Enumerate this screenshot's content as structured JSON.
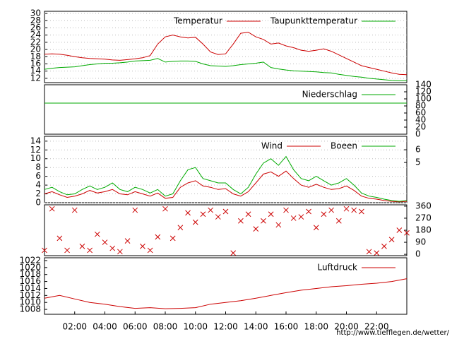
{
  "chart_data": [
    {
      "type": "line",
      "xlim": [
        0,
        24
      ],
      "ylim": [
        10.8,
        30.6
      ],
      "yticks": [
        12,
        14,
        16,
        18,
        20,
        22,
        24,
        26,
        28,
        30
      ],
      "yaxis_side": "left",
      "grid": true,
      "series": [
        {
          "name": "Temperatur",
          "color": "#cc0000",
          "x": [
            0,
            0.5,
            1,
            1.5,
            2,
            2.5,
            3,
            3.5,
            4,
            4.5,
            5,
            5.5,
            6,
            6.5,
            7,
            7.5,
            8,
            8.5,
            9,
            9.5,
            10,
            10.5,
            11,
            11.5,
            12,
            12.5,
            13,
            13.5,
            14,
            14.5,
            15,
            15.5,
            16,
            16.5,
            17,
            17.5,
            18,
            18.5,
            19,
            19.5,
            20,
            20.5,
            21,
            21.5,
            22,
            22.5,
            23,
            23.5,
            24
          ],
          "values": [
            18.7,
            18.8,
            18.7,
            18.4,
            18.0,
            17.7,
            17.5,
            17.4,
            17.3,
            17.1,
            17.0,
            17.2,
            17.4,
            17.7,
            18.3,
            21.5,
            23.5,
            24.0,
            23.5,
            23.2,
            23.4,
            21.5,
            19.3,
            18.6,
            18.8,
            21.5,
            24.5,
            24.8,
            23.5,
            22.8,
            21.5,
            21.8,
            21.0,
            20.5,
            19.8,
            19.5,
            19.8,
            20.2,
            19.5,
            18.5,
            17.5,
            16.5,
            15.5,
            15.0,
            14.5,
            14.0,
            13.5,
            13.1,
            13.0
          ]
        },
        {
          "name": "Taupunkttemperatur",
          "color": "#00aa00",
          "x": [
            0,
            0.5,
            1,
            1.5,
            2,
            2.5,
            3,
            3.5,
            4,
            4.5,
            5,
            5.5,
            6,
            6.5,
            7,
            7.5,
            8,
            8.5,
            9,
            9.5,
            10,
            10.5,
            11,
            11.5,
            12,
            12.5,
            13,
            13.5,
            14,
            14.5,
            15,
            15.5,
            16,
            16.5,
            17,
            17.5,
            18,
            18.5,
            19,
            19.5,
            20,
            20.5,
            21,
            21.5,
            22,
            22.5,
            23,
            23.5,
            24
          ],
          "values": [
            14.5,
            14.8,
            15.0,
            15.1,
            15.2,
            15.5,
            15.8,
            16.0,
            16.2,
            16.2,
            16.3,
            16.5,
            16.8,
            16.9,
            17.0,
            17.5,
            16.5,
            16.7,
            16.8,
            16.8,
            16.7,
            16.0,
            15.5,
            15.4,
            15.3,
            15.5,
            15.8,
            16.0,
            16.2,
            16.5,
            15.0,
            14.6,
            14.3,
            14.1,
            14.0,
            13.9,
            13.8,
            13.6,
            13.5,
            13.1,
            12.8,
            12.5,
            12.3,
            12.0,
            11.8,
            11.6,
            11.4,
            11.3,
            11.3
          ]
        }
      ]
    },
    {
      "type": "line",
      "xlim": [
        0,
        24
      ],
      "ylim": [
        0,
        140
      ],
      "yticks": [
        0,
        20,
        40,
        60,
        80,
        100,
        120,
        140
      ],
      "yaxis_side": "right",
      "grid": false,
      "series": [
        {
          "name": "Niederschlag",
          "color": "#00aa00",
          "x": [
            0,
            24
          ],
          "values": [
            88,
            88
          ]
        }
      ]
    },
    {
      "type": "line",
      "xlim": [
        0,
        24
      ],
      "ylim": [
        0,
        15.1
      ],
      "yticks": [
        0,
        2,
        4,
        6,
        8,
        10,
        12,
        14
      ],
      "yaxis_side": "left",
      "y2lim": [
        1.83,
        7.06
      ],
      "y2ticks": [
        5,
        6
      ],
      "grid": true,
      "series": [
        {
          "name": "Wind",
          "color": "#cc0000",
          "x": [
            0,
            0.5,
            1,
            1.5,
            2,
            2.5,
            3,
            3.5,
            4,
            4.5,
            5,
            5.5,
            6,
            6.5,
            7,
            7.5,
            8,
            8.5,
            9,
            9.5,
            10,
            10.5,
            11,
            11.5,
            12,
            12.5,
            13,
            13.5,
            14,
            14.5,
            15,
            15.5,
            16,
            16.5,
            17,
            17.5,
            18,
            18.5,
            19,
            19.5,
            20,
            20.5,
            21,
            21.5,
            22,
            22.5,
            23,
            23.5,
            24
          ],
          "values": [
            2.0,
            2.5,
            1.8,
            1.2,
            1.5,
            2.0,
            2.8,
            2.2,
            2.5,
            3.0,
            2.0,
            1.8,
            2.5,
            2.0,
            1.5,
            2.2,
            1.0,
            1.2,
            3.5,
            4.5,
            5.0,
            3.8,
            3.5,
            3.0,
            3.2,
            2.0,
            1.5,
            2.5,
            4.5,
            6.5,
            7.0,
            6.0,
            7.2,
            5.5,
            4.0,
            3.5,
            4.2,
            3.5,
            3.0,
            3.2,
            3.8,
            2.8,
            1.5,
            1.0,
            0.8,
            0.5,
            0.3,
            0.2,
            0.3
          ]
        },
        {
          "name": "Boeen",
          "color": "#00aa00",
          "x": [
            0,
            0.5,
            1,
            1.5,
            2,
            2.5,
            3,
            3.5,
            4,
            4.5,
            5,
            5.5,
            6,
            6.5,
            7,
            7.5,
            8,
            8.5,
            9,
            9.5,
            10,
            10.5,
            11,
            11.5,
            12,
            12.5,
            13,
            13.5,
            14,
            14.5,
            15,
            15.5,
            16,
            16.5,
            17,
            17.5,
            18,
            18.5,
            19,
            19.5,
            20,
            20.5,
            21,
            21.5,
            22,
            22.5,
            23,
            23.5,
            24
          ],
          "values": [
            3.0,
            3.5,
            2.5,
            1.8,
            2.0,
            3.0,
            3.8,
            3.0,
            3.5,
            4.5,
            3.0,
            2.5,
            3.5,
            3.0,
            2.2,
            3.0,
            1.5,
            2.0,
            5.0,
            7.5,
            8.0,
            5.5,
            5.0,
            4.5,
            4.5,
            3.0,
            2.0,
            3.5,
            6.5,
            9.0,
            10.0,
            8.5,
            10.5,
            7.5,
            5.5,
            5.0,
            6.0,
            5.0,
            4.0,
            4.5,
            5.5,
            4.0,
            2.2,
            1.5,
            1.2,
            0.8,
            0.5,
            0.3,
            0.5
          ]
        }
      ]
    },
    {
      "type": "scatter",
      "xlim": [
        0,
        24
      ],
      "ylim": [
        -10,
        370
      ],
      "yticks": [
        0,
        90,
        180,
        270,
        360
      ],
      "yaxis_side": "right",
      "grid": false,
      "color": "#cc0000",
      "x": [
        0,
        0.5,
        1,
        1.5,
        2,
        2.5,
        3,
        3.5,
        4,
        4.5,
        5,
        5.5,
        6,
        6.5,
        7,
        7.5,
        8,
        8.5,
        9,
        9.5,
        10,
        10.5,
        11,
        11.5,
        12,
        12.5,
        13,
        13.5,
        14,
        14.5,
        15,
        15.5,
        16,
        16.5,
        17,
        17.5,
        18,
        18.5,
        19,
        19.5,
        20,
        20.5,
        21,
        21.5,
        22,
        22.5,
        23,
        23.5,
        24
      ],
      "values": [
        30,
        340,
        120,
        30,
        330,
        60,
        30,
        150,
        90,
        45,
        20,
        100,
        330,
        60,
        30,
        130,
        340,
        120,
        200,
        310,
        240,
        300,
        330,
        280,
        320,
        10,
        250,
        300,
        190,
        250,
        300,
        220,
        330,
        270,
        280,
        320,
        200,
        300,
        330,
        250,
        340,
        330,
        320,
        20,
        10,
        60,
        110,
        180,
        160
      ]
    },
    {
      "type": "line",
      "xlim": [
        0,
        24
      ],
      "ylim": [
        1006.6,
        1022.8
      ],
      "yticks": [
        1008,
        1010,
        1012,
        1014,
        1016,
        1018,
        1020,
        1022
      ],
      "yaxis_side": "left",
      "grid": false,
      "xticks": [
        {
          "value": 2,
          "label": "02:00"
        },
        {
          "value": 4,
          "label": "04:00"
        },
        {
          "value": 6,
          "label": "06:00"
        },
        {
          "value": 8,
          "label": "08:00"
        },
        {
          "value": 10,
          "label": "10:00"
        },
        {
          "value": 12,
          "label": "12:00"
        },
        {
          "value": 14,
          "label": "14:00"
        },
        {
          "value": 16,
          "label": "16:00"
        },
        {
          "value": 18,
          "label": "18:00"
        },
        {
          "value": 20,
          "label": "20:00"
        },
        {
          "value": 22,
          "label": "22:00"
        }
      ],
      "series": [
        {
          "name": "Luftdruck",
          "color": "#cc0000",
          "x": [
            0,
            1,
            2,
            3,
            4,
            5,
            6,
            7,
            8,
            9,
            10,
            11,
            12,
            13,
            14,
            15,
            16,
            17,
            18,
            19,
            20,
            21,
            22,
            23,
            24
          ],
          "values": [
            1011.2,
            1012,
            1011,
            1010,
            1009.5,
            1008.8,
            1008.3,
            1008.5,
            1008.2,
            1008.3,
            1008.5,
            1009.5,
            1010,
            1010.5,
            1011.2,
            1012,
            1012.8,
            1013.5,
            1014,
            1014.5,
            1014.8,
            1015.2,
            1015.5,
            1016,
            1016.8
          ]
        }
      ]
    }
  ],
  "url": "http://www.tiefflegen.de/wetter/"
}
